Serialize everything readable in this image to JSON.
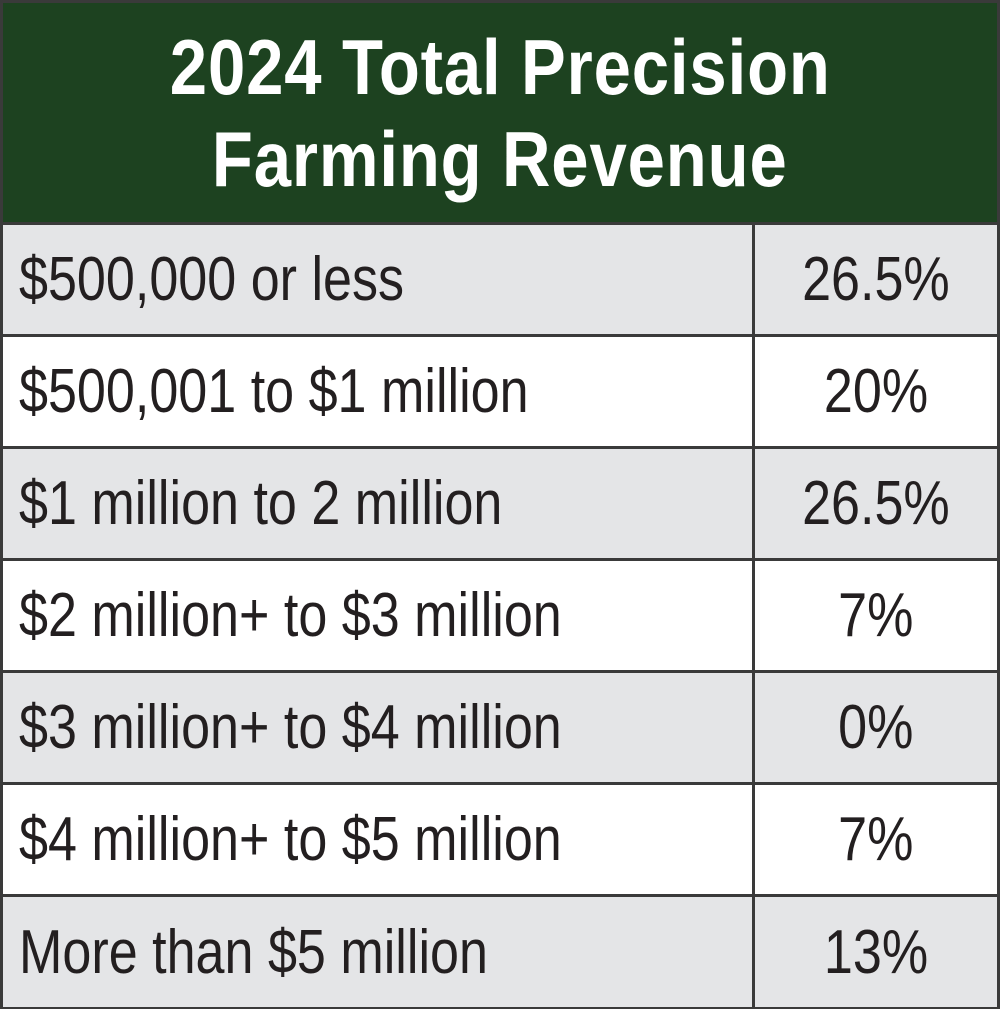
{
  "title": {
    "line1": "2024 Total Precision",
    "line2": "Farming Revenue"
  },
  "rows": [
    {
      "range": "$500,000 or less",
      "percent": "26.5%"
    },
    {
      "range": "$500,001 to $1 million",
      "percent": "20%"
    },
    {
      "range": "$1 million to 2 million",
      "percent": "26.5%"
    },
    {
      "range": "$2 million+ to $3 million",
      "percent": "7%"
    },
    {
      "range": "$3 million+ to $4 million",
      "percent": "0%"
    },
    {
      "range": "$4 million+ to $5 million",
      "percent": "7%"
    },
    {
      "range": "More than $5 million",
      "percent": "13%"
    }
  ],
  "colors": {
    "header": "#1d4220",
    "alt_row": "#e4e5e7",
    "border": "#3a3a3a"
  }
}
